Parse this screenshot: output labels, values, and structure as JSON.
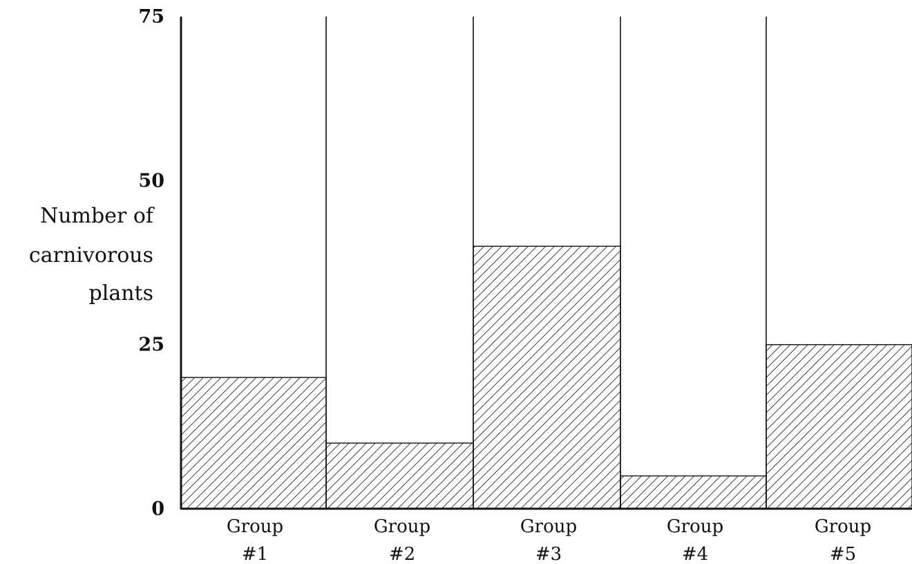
{
  "chart_data": {
    "type": "bar",
    "title": "",
    "xlabel": "",
    "ylabel_lines": [
      "Number of",
      "carnivorous",
      "plants"
    ],
    "categories": [
      [
        "Group",
        "#1"
      ],
      [
        "Group",
        "#2"
      ],
      [
        "Group",
        "#3"
      ],
      [
        "Group",
        "#4"
      ],
      [
        "Group",
        "#5"
      ]
    ],
    "values": [
      20,
      10,
      40,
      5,
      25
    ],
    "ylim": [
      0,
      75
    ],
    "yticks": [
      "0",
      "25",
      "50",
      "75"
    ],
    "grid": "vertical lines between groups",
    "bar_fill": "diagonal hatching",
    "colors": {
      "ink": "#111111",
      "background": "#ffffff"
    }
  }
}
